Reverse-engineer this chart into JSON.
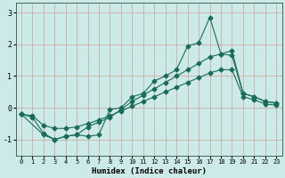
{
  "xlabel": "Humidex (Indice chaleur)",
  "xlim": [
    -0.5,
    23.5
  ],
  "ylim": [
    -1.5,
    3.3
  ],
  "yticks": [
    -1,
    0,
    1,
    2,
    3
  ],
  "xticks": [
    0,
    1,
    2,
    3,
    4,
    5,
    6,
    7,
    8,
    9,
    10,
    11,
    12,
    13,
    14,
    15,
    16,
    17,
    18,
    19,
    20,
    21,
    22,
    23
  ],
  "bg_color": "#cceae7",
  "grid_color": "#c8a0a0",
  "line_color": "#1a6b5a",
  "line1_x": [
    0,
    1,
    2,
    3,
    4,
    5,
    6,
    7,
    8,
    9,
    10,
    11,
    12,
    13,
    14,
    15,
    16,
    17,
    18,
    19,
    20,
    21,
    22,
    23
  ],
  "line1_y": [
    -0.2,
    -0.3,
    -0.8,
    -1.0,
    -0.9,
    -0.85,
    -0.9,
    -0.85,
    -0.05,
    0.0,
    0.35,
    0.45,
    0.85,
    1.0,
    1.2,
    1.95,
    2.05,
    2.85,
    1.7,
    1.8,
    0.45,
    0.35,
    0.2,
    0.15
  ],
  "line2_x": [
    0,
    2,
    3,
    4,
    5,
    6,
    7,
    8,
    9,
    10,
    11,
    12,
    13,
    14,
    15,
    16,
    17,
    18,
    19,
    20,
    21,
    22,
    23
  ],
  "line2_y": [
    -0.2,
    -0.85,
    -1.0,
    -0.9,
    -0.85,
    -0.6,
    -0.45,
    -0.3,
    -0.05,
    0.2,
    0.4,
    0.6,
    0.8,
    1.0,
    1.2,
    1.4,
    1.6,
    1.7,
    1.65,
    0.45,
    0.35,
    0.2,
    0.15
  ],
  "line3_x": [
    0,
    1,
    2,
    3,
    4,
    5,
    6,
    7,
    8,
    9,
    10,
    11,
    12,
    13,
    14,
    15,
    16,
    17,
    18,
    19,
    20,
    21,
    22,
    23
  ],
  "line3_y": [
    -0.2,
    -0.25,
    -0.55,
    -0.65,
    -0.65,
    -0.6,
    -0.5,
    -0.38,
    -0.25,
    -0.1,
    0.05,
    0.2,
    0.35,
    0.5,
    0.65,
    0.8,
    0.95,
    1.1,
    1.2,
    1.2,
    0.35,
    0.25,
    0.12,
    0.08
  ],
  "marker": "D",
  "markersize": 2.5,
  "linewidth": 0.8
}
